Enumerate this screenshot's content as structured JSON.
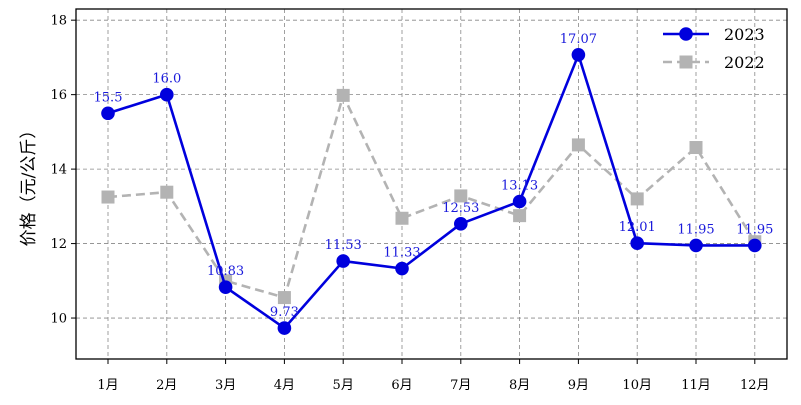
{
  "chart_data": {
    "type": "line",
    "title": "",
    "xlabel": "",
    "ylabel": "价格（元/公斤）",
    "categories": [
      "1月",
      "2月",
      "3月",
      "4月",
      "5月",
      "6月",
      "7月",
      "8月",
      "9月",
      "10月",
      "11月",
      "12月"
    ],
    "ylim": [
      8.9,
      18.3
    ],
    "yticks": [
      10,
      12,
      14,
      16,
      18
    ],
    "grid": true,
    "legend": "top-right",
    "series": [
      {
        "name": "2023",
        "values": [
          15.5,
          16.0,
          10.83,
          9.73,
          11.53,
          11.33,
          12.53,
          13.13,
          17.07,
          12.01,
          11.95,
          11.95
        ],
        "labels": [
          "15.5",
          "16.0",
          "10.83",
          "9.73",
          "11.53",
          "11.33",
          "12.53",
          "13.13",
          "17.07",
          "12.01",
          "11.95",
          "11.95"
        ],
        "color": "#0000dd",
        "marker": "circle",
        "linestyle": "solid"
      },
      {
        "name": "2022",
        "values": [
          13.25,
          13.38,
          11.0,
          10.55,
          15.98,
          12.68,
          13.28,
          12.75,
          14.65,
          13.2,
          14.58,
          12.05
        ],
        "color": "#b3b3b3",
        "marker": "square",
        "linestyle": "dashed"
      }
    ]
  }
}
